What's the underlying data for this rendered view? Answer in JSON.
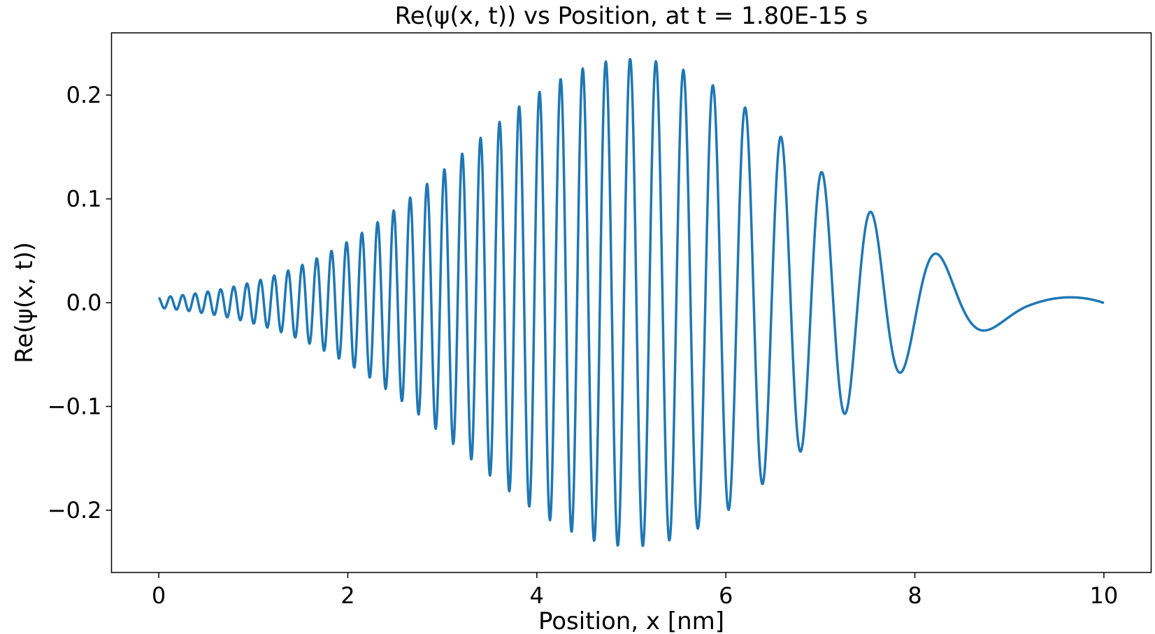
{
  "chart_data": {
    "type": "line",
    "title": "Re(ψ(x, t)) vs Position, at t = 1.80E-15 s",
    "xlabel": "Position, x [nm]",
    "ylabel": "Re(ψ(x, t))",
    "xlim": [
      -0.5,
      10.5
    ],
    "ylim": [
      -0.26,
      0.26
    ],
    "xticks": [
      0,
      2,
      4,
      6,
      8,
      10
    ],
    "xtick_labels": [
      "0",
      "2",
      "4",
      "6",
      "8",
      "10"
    ],
    "yticks": [
      -0.2,
      -0.1,
      0.0,
      0.1,
      0.2
    ],
    "ytick_labels": [
      "−0.2",
      "−0.1",
      "0.0",
      "0.1",
      "0.2"
    ],
    "grid": false,
    "color": "#1f77b4",
    "series": [
      {
        "x_start": 0,
        "x_end": 10,
        "x_step": 0.005,
        "form": "A*exp(-((x-x0)/w)^2)*cos(phase(x))",
        "amplitude": 0.235,
        "center": 5.0,
        "width": 2.55,
        "cycles_in_range": 58,
        "description_peaks": "dense oscillation with gaussian envelope peaking near x=5 at ~0.235; right tail ~0.017"
      }
    ]
  }
}
